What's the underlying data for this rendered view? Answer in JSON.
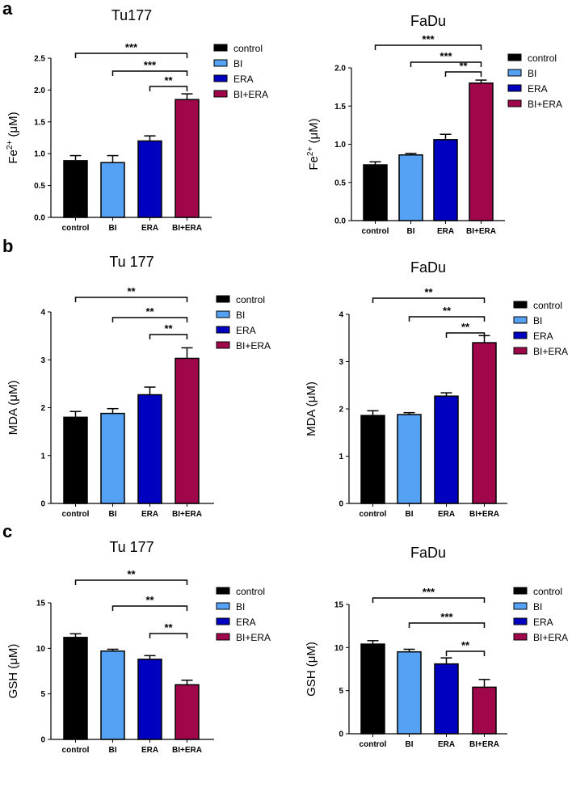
{
  "panel_labels": [
    "a",
    "b",
    "c"
  ],
  "legend": [
    "control",
    "BI",
    "ERA",
    "BI+ERA"
  ],
  "colors": {
    "control": "#000000",
    "BI": "#55a2f5",
    "ERA": "#0000c0",
    "BI+ERA": "#a0064a"
  },
  "chart_data": [
    {
      "type": "bar",
      "title": "Tu177",
      "ylabel": "Fe2+ (μM)",
      "ylabel_main": "Fe",
      "ylabel_sup": "2+",
      "ylabel_unit": "(μM)",
      "categories": [
        "control",
        "BI",
        "ERA",
        "BI+ERA"
      ],
      "values": [
        0.89,
        0.86,
        1.2,
        1.85
      ],
      "errors": [
        0.08,
        0.11,
        0.08,
        0.09
      ],
      "ylim": [
        0,
        2.5
      ],
      "yticks": [
        "0.0",
        "0.5",
        "1.0",
        "1.5",
        "2.0",
        "2.5"
      ],
      "significance": [
        {
          "from": "control",
          "to": "BI+ERA",
          "label": "***"
        },
        {
          "from": "BI",
          "to": "BI+ERA",
          "label": "***"
        },
        {
          "from": "ERA",
          "to": "BI+ERA",
          "label": "**"
        }
      ],
      "legend_position": "right"
    },
    {
      "type": "bar",
      "title": "FaDu",
      "ylabel": "Fe2+ (μM)",
      "ylabel_main": "Fe",
      "ylabel_sup": "2+",
      "ylabel_unit": "(μM)",
      "categories": [
        "control",
        "BI",
        "ERA",
        "BI+ERA"
      ],
      "values": [
        0.73,
        0.86,
        1.06,
        1.8
      ],
      "errors": [
        0.04,
        0.02,
        0.07,
        0.04
      ],
      "ylim": [
        0,
        2.0
      ],
      "yticks": [
        "0.0",
        "0.5",
        "1.0",
        "1.5",
        "2.0"
      ],
      "significance": [
        {
          "from": "control",
          "to": "BI+ERA",
          "label": "***"
        },
        {
          "from": "BI",
          "to": "BI+ERA",
          "label": "***"
        },
        {
          "from": "ERA",
          "to": "BI+ERA",
          "label": "**"
        }
      ],
      "legend_position": "right"
    },
    {
      "type": "bar",
      "title": "Tu 177",
      "ylabel": "MDA (μM)",
      "ylabel_main": "MDA",
      "ylabel_sup": "",
      "ylabel_unit": "(μM)",
      "categories": [
        "control",
        "BI",
        "ERA",
        "BI+ERA"
      ],
      "values": [
        1.8,
        1.88,
        2.27,
        3.03
      ],
      "errors": [
        0.12,
        0.1,
        0.16,
        0.22
      ],
      "ylim": [
        0,
        4
      ],
      "yticks": [
        "0",
        "1",
        "2",
        "3",
        "4"
      ],
      "significance": [
        {
          "from": "control",
          "to": "BI+ERA",
          "label": "**"
        },
        {
          "from": "BI",
          "to": "BI+ERA",
          "label": "**"
        },
        {
          "from": "ERA",
          "to": "BI+ERA",
          "label": "**"
        }
      ],
      "legend_position": "right"
    },
    {
      "type": "bar",
      "title": "FaDu",
      "ylabel": "MDA (μM)",
      "ylabel_main": "MDA",
      "ylabel_sup": "",
      "ylabel_unit": "(μM)",
      "categories": [
        "control",
        "BI",
        "ERA",
        "BI+ERA"
      ],
      "values": [
        1.86,
        1.88,
        2.27,
        3.4
      ],
      "errors": [
        0.1,
        0.04,
        0.07,
        0.15
      ],
      "ylim": [
        0,
        4
      ],
      "yticks": [
        "0",
        "1",
        "2",
        "3",
        "4"
      ],
      "significance": [
        {
          "from": "control",
          "to": "BI+ERA",
          "label": "**"
        },
        {
          "from": "BI",
          "to": "BI+ERA",
          "label": "**"
        },
        {
          "from": "ERA",
          "to": "BI+ERA",
          "label": "**"
        }
      ],
      "legend_position": "right"
    },
    {
      "type": "bar",
      "title": "Tu 177",
      "ylabel": "GSH (μM)",
      "ylabel_main": "GSH",
      "ylabel_sup": "",
      "ylabel_unit": "(μM)",
      "categories": [
        "control",
        "BI",
        "ERA",
        "BI+ERA"
      ],
      "values": [
        11.2,
        9.7,
        8.8,
        6.0
      ],
      "errors": [
        0.4,
        0.2,
        0.4,
        0.5
      ],
      "ylim": [
        0,
        15
      ],
      "yticks": [
        "0",
        "5",
        "10",
        "15"
      ],
      "significance": [
        {
          "from": "control",
          "to": "BI+ERA",
          "label": "**"
        },
        {
          "from": "BI",
          "to": "BI+ERA",
          "label": "**"
        },
        {
          "from": "ERA",
          "to": "BI+ERA",
          "label": "**"
        }
      ],
      "legend_position": "right"
    },
    {
      "type": "bar",
      "title": "FaDu",
      "ylabel": "GSH (μM)",
      "ylabel_main": "GSH",
      "ylabel_sup": "",
      "ylabel_unit": "(μM)",
      "categories": [
        "control",
        "BI",
        "ERA",
        "BI+ERA"
      ],
      "values": [
        10.4,
        9.5,
        8.1,
        5.4
      ],
      "errors": [
        0.4,
        0.3,
        0.7,
        0.9
      ],
      "ylim": [
        0,
        15
      ],
      "yticks": [
        "0",
        "5",
        "10",
        "15"
      ],
      "significance": [
        {
          "from": "control",
          "to": "BI+ERA",
          "label": "***"
        },
        {
          "from": "BI",
          "to": "BI+ERA",
          "label": "***"
        },
        {
          "from": "ERA",
          "to": "BI+ERA",
          "label": "**"
        }
      ],
      "legend_position": "right"
    }
  ]
}
